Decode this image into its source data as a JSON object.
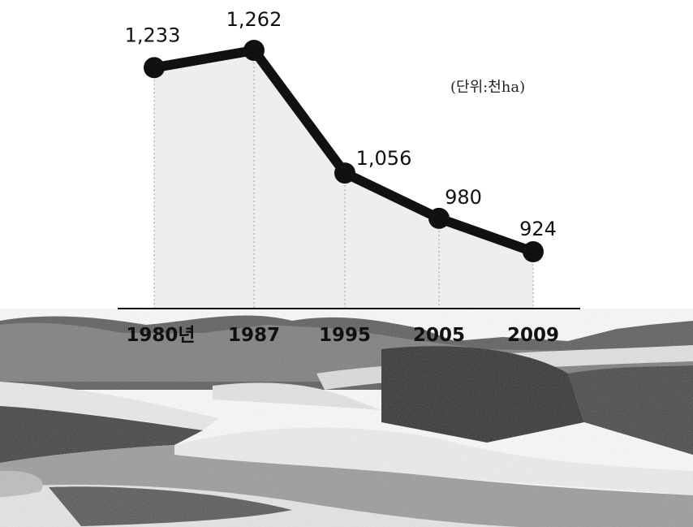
{
  "chart_data": {
    "type": "line",
    "categories": [
      "1980년",
      "1987",
      "1995",
      "2005",
      "2009"
    ],
    "values": [
      1233,
      1262,
      1056,
      980,
      924
    ],
    "value_labels": [
      "1,233",
      "1,262",
      "1,056",
      "980",
      "924"
    ],
    "unit": "(단위:천ha)",
    "grid": false,
    "colors": {
      "line": "#111111",
      "marker": "#111111",
      "guide": "#9a9a9a"
    }
  }
}
